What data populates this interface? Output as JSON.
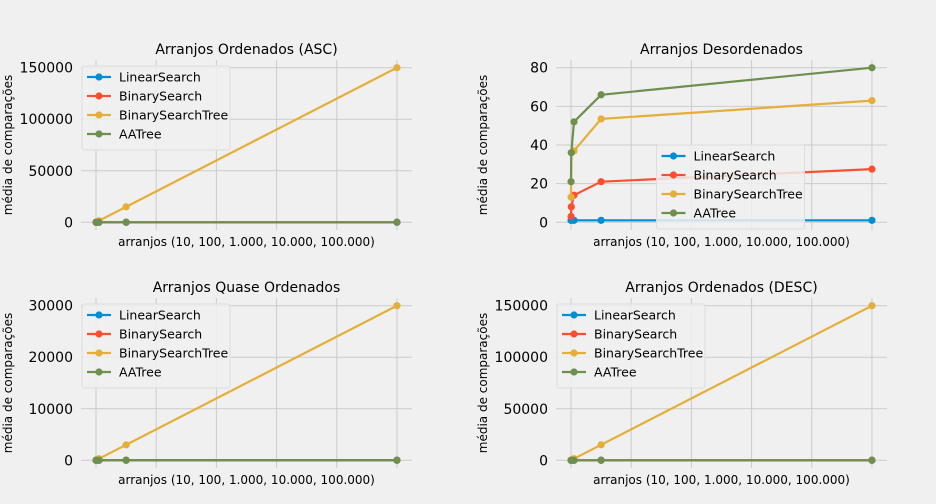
{
  "palette": {
    "LinearSearch": "#008fd5",
    "BinarySearch": "#fc4f30",
    "BinarySearchTree": "#e5ae38",
    "AATree": "#6d904f",
    "background": "#f0f0f0",
    "grid": "#cbcbcb"
  },
  "chart_data": [
    {
      "type": "line",
      "title": "Arranjos Ordenados (ASC)",
      "xlabel": "arranjos (10, 100, 1.000, 10.000, 100.000)",
      "ylabel": "média de comparações",
      "x": [
        10,
        100,
        1000,
        10000,
        100000
      ],
      "xlim": [
        -4990,
        104999
      ],
      "ylim": [
        -7500,
        157500
      ],
      "yticks": [
        0,
        50000,
        100000,
        150000
      ],
      "ytick_labels": [
        "0",
        "50000",
        "100000",
        "150000"
      ],
      "grid": true,
      "legend_position": "upper-left",
      "series": [
        {
          "name": "LinearSearch",
          "values": [
            1,
            1,
            1,
            1,
            1
          ]
        },
        {
          "name": "BinarySearch",
          "values": [
            3.5,
            6.5,
            10,
            13.5,
            16.5
          ]
        },
        {
          "name": "BinarySearchTree",
          "values": [
            15,
            150,
            1500,
            15000,
            150000
          ]
        },
        {
          "name": "AATree",
          "values": [
            3.5,
            6.5,
            10,
            13.5,
            16.5
          ]
        }
      ]
    },
    {
      "type": "line",
      "title": "Arranjos Desordenados",
      "xlabel": "arranjos (10, 100, 1.000, 10.000, 100.000)",
      "ylabel": "média de comparações",
      "x": [
        10,
        100,
        1000,
        10000,
        100000
      ],
      "xlim": [
        -4990,
        104999
      ],
      "ylim": [
        -4,
        84
      ],
      "yticks": [
        0,
        20,
        40,
        60,
        80
      ],
      "ytick_labels": [
        "0",
        "20",
        "40",
        "60",
        "80"
      ],
      "grid": true,
      "legend_position": "center",
      "series": [
        {
          "name": "LinearSearch",
          "values": [
            1,
            1,
            1,
            1,
            1
          ]
        },
        {
          "name": "BinarySearch",
          "values": [
            3,
            8,
            14,
            21,
            27.5
          ]
        },
        {
          "name": "BinarySearchTree",
          "values": [
            13,
            36,
            37,
            53.5,
            63
          ]
        },
        {
          "name": "AATree",
          "values": [
            21,
            36,
            52,
            66,
            80
          ]
        }
      ]
    },
    {
      "type": "line",
      "title": "Arranjos Quase Ordenados",
      "xlabel": "arranjos (10, 100, 1.000, 10.000, 100.000)",
      "ylabel": "média de comparações",
      "x": [
        10,
        100,
        1000,
        10000,
        100000
      ],
      "xlim": [
        -4990,
        104999
      ],
      "ylim": [
        -1500,
        31500
      ],
      "yticks": [
        0,
        10000,
        20000,
        30000
      ],
      "ytick_labels": [
        "0",
        "10000",
        "20000",
        "30000"
      ],
      "grid": true,
      "legend_position": "upper-left",
      "series": [
        {
          "name": "LinearSearch",
          "values": [
            1,
            1,
            1,
            1,
            1
          ]
        },
        {
          "name": "BinarySearch",
          "values": [
            3.5,
            6.5,
            10,
            13.5,
            16.5
          ]
        },
        {
          "name": "BinarySearchTree",
          "values": [
            5,
            30,
            300,
            3000,
            30000
          ]
        },
        {
          "name": "AATree",
          "values": [
            3.5,
            6.5,
            10,
            13.5,
            16.5
          ]
        }
      ]
    },
    {
      "type": "line",
      "title": "Arranjos Ordenados (DESC)",
      "xlabel": "arranjos (10, 100, 1.000, 10.000, 100.000)",
      "ylabel": "média de comparações",
      "x": [
        10,
        100,
        1000,
        10000,
        100000
      ],
      "xlim": [
        -4990,
        104999
      ],
      "ylim": [
        -7500,
        157500
      ],
      "yticks": [
        0,
        50000,
        100000,
        150000
      ],
      "ytick_labels": [
        "0",
        "50000",
        "100000",
        "150000"
      ],
      "grid": true,
      "legend_position": "upper-left",
      "series": [
        {
          "name": "LinearSearch",
          "values": [
            1,
            1,
            1,
            1,
            1
          ]
        },
        {
          "name": "BinarySearch",
          "values": [
            3.5,
            6.5,
            10,
            13.5,
            16.5
          ]
        },
        {
          "name": "BinarySearchTree",
          "values": [
            15,
            150,
            1500,
            15000,
            150000
          ]
        },
        {
          "name": "AATree",
          "values": [
            3.5,
            6.5,
            10,
            13.5,
            16.5
          ]
        }
      ]
    }
  ]
}
